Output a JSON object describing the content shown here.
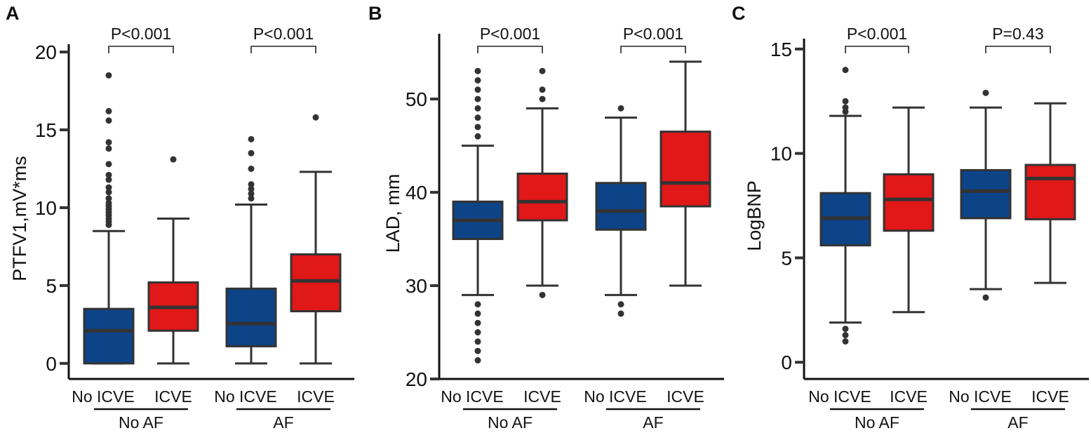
{
  "colors": {
    "no_icve": "#0d4488",
    "icve": "#e01818",
    "outline": "#333333",
    "axis": "#111111"
  },
  "chart_data": [
    {
      "type": "box",
      "panel_label": "A",
      "ylabel": "PTFV1,mV*ms",
      "ylim": [
        -1,
        20.5
      ],
      "yticks": [
        0,
        5,
        10,
        15,
        20
      ],
      "groups": [
        "No AF",
        "AF"
      ],
      "categories": [
        "No ICVE",
        "ICVE",
        "No ICVE",
        "ICVE"
      ],
      "p_values": [
        "P<0.001",
        "P<0.001"
      ],
      "boxes": [
        {
          "group": "No AF",
          "category": "No ICVE",
          "color": "no_icve",
          "min": 0,
          "q1": 0,
          "median": 2.1,
          "q3": 3.5,
          "max": 8.5,
          "outliers": [
            8.9,
            9.1,
            9.3,
            9.5,
            9.7,
            9.9,
            10.1,
            10.3,
            10.6,
            11.0,
            11.3,
            11.8,
            12.1,
            12.8,
            13.8,
            14.2,
            15.6,
            16.2,
            18.5
          ]
        },
        {
          "group": "No AF",
          "category": "ICVE",
          "color": "icve",
          "min": 0,
          "q1": 2.1,
          "median": 3.6,
          "q3": 5.2,
          "max": 9.3,
          "outliers": [
            13.1
          ]
        },
        {
          "group": "AF",
          "category": "No ICVE",
          "color": "no_icve",
          "min": 0,
          "q1": 1.1,
          "median": 2.55,
          "q3": 4.8,
          "max": 10.2,
          "outliers": [
            10.6,
            10.9,
            11.2,
            11.5,
            12.5,
            13.5,
            14.4
          ]
        },
        {
          "group": "AF",
          "category": "ICVE",
          "color": "icve",
          "min": 0,
          "q1": 3.35,
          "median": 5.3,
          "q3": 7.0,
          "max": 12.3,
          "outliers": [
            15.8
          ]
        }
      ]
    },
    {
      "type": "box",
      "panel_label": "B",
      "ylabel": "LAD, mm",
      "ylim": [
        20,
        57
      ],
      "yticks": [
        20,
        30,
        40,
        50
      ],
      "groups": [
        "No AF",
        "AF"
      ],
      "categories": [
        "No ICVE",
        "ICVE",
        "No ICVE",
        "ICVE"
      ],
      "p_values": [
        "P<0.001",
        "P<0.001"
      ],
      "boxes": [
        {
          "group": "No AF",
          "category": "No ICVE",
          "color": "no_icve",
          "min": 29,
          "q1": 35,
          "median": 37,
          "q3": 39,
          "max": 45,
          "outliers": [
            46,
            47,
            48,
            49,
            50,
            51,
            52,
            53,
            28,
            27,
            26,
            25,
            24,
            23,
            22
          ]
        },
        {
          "group": "No AF",
          "category": "ICVE",
          "color": "icve",
          "min": 30,
          "q1": 37,
          "median": 39,
          "q3": 42,
          "max": 49,
          "outliers": [
            50,
            51,
            53,
            29
          ]
        },
        {
          "group": "AF",
          "category": "No ICVE",
          "color": "no_icve",
          "min": 29,
          "q1": 36,
          "median": 38,
          "q3": 41,
          "max": 48,
          "outliers": [
            49,
            28,
            27
          ]
        },
        {
          "group": "AF",
          "category": "ICVE",
          "color": "icve",
          "min": 30,
          "q1": 38.5,
          "median": 41,
          "q3": 46.5,
          "max": 54,
          "outliers": []
        }
      ]
    },
    {
      "type": "box",
      "panel_label": "C",
      "ylabel": "LogBNP",
      "ylim": [
        -0.8,
        15.5
      ],
      "yticks": [
        0,
        5,
        10,
        15
      ],
      "groups": [
        "No AF",
        "AF"
      ],
      "categories": [
        "No ICVE",
        "ICVE",
        "No ICVE",
        "ICVE"
      ],
      "p_values": [
        "P<0.001",
        "P=0.43"
      ],
      "boxes": [
        {
          "group": "No AF",
          "category": "No ICVE",
          "color": "no_icve",
          "min": 1.9,
          "q1": 5.6,
          "median": 6.9,
          "q3": 8.1,
          "max": 11.8,
          "outliers": [
            12.0,
            12.2,
            12.5,
            14.0,
            1.6,
            1.3,
            1.0
          ]
        },
        {
          "group": "No AF",
          "category": "ICVE",
          "color": "icve",
          "min": 2.4,
          "q1": 6.3,
          "median": 7.8,
          "q3": 9.0,
          "max": 12.2,
          "outliers": []
        },
        {
          "group": "AF",
          "category": "No ICVE",
          "color": "no_icve",
          "min": 3.5,
          "q1": 6.9,
          "median": 8.2,
          "q3": 9.2,
          "max": 12.2,
          "outliers": [
            12.9,
            3.1
          ]
        },
        {
          "group": "AF",
          "category": "ICVE",
          "color": "icve",
          "min": 3.8,
          "q1": 6.85,
          "median": 8.8,
          "q3": 9.45,
          "max": 12.4,
          "outliers": []
        }
      ]
    }
  ]
}
